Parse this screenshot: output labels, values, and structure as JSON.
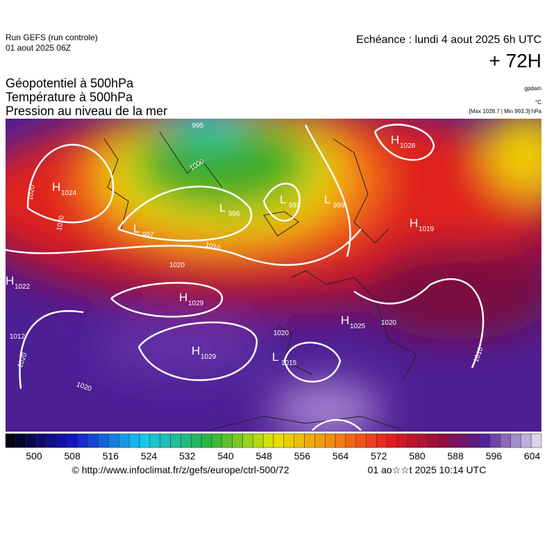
{
  "header": {
    "run": "Run GEFS (run controle)",
    "run_date": "01 aout 2025 06Z",
    "echeance": "Echéance : lundi 4 aout 2025 6h UTC",
    "lead": "+ 72H",
    "titles": [
      "Géopotentiel à 500hPa",
      "Température à 500hPa",
      "Pression au niveau de la mer"
    ],
    "units": [
      "gpdam",
      "°C",
      "[Max 1028.7 | Min 993.3] hPa"
    ]
  },
  "map": {
    "centers": [
      {
        "kind": "H",
        "value": "1024"
      },
      {
        "kind": "H",
        "value": "1028"
      },
      {
        "kind": "L",
        "value": "993"
      },
      {
        "kind": "L",
        "value": "999"
      },
      {
        "kind": "L",
        "value": "996"
      },
      {
        "kind": "L",
        "value": "997"
      },
      {
        "kind": "H",
        "value": "1019"
      },
      {
        "kind": "H",
        "value": "1022"
      },
      {
        "kind": "H",
        "value": "1029"
      },
      {
        "kind": "H",
        "value": "1025"
      },
      {
        "kind": "H",
        "value": "1029"
      },
      {
        "kind": "L",
        "value": "1015"
      }
    ],
    "isobar_labels": [
      "1020",
      "1020",
      "1010",
      "1020",
      "1000",
      "1012",
      "1020",
      "1020",
      "1020",
      "1010",
      "995",
      "1020"
    ]
  },
  "colorbar": {
    "labels": [
      "500",
      "508",
      "516",
      "524",
      "532",
      "540",
      "548",
      "556",
      "564",
      "572",
      "580",
      "588",
      "596",
      "604"
    ]
  },
  "footer": {
    "url": "© http://www.infoclimat.fr/z/gefs/europe/ctrl-500/72",
    "timestamp": "01 ao☆☆t 2025 10:14 UTC"
  }
}
